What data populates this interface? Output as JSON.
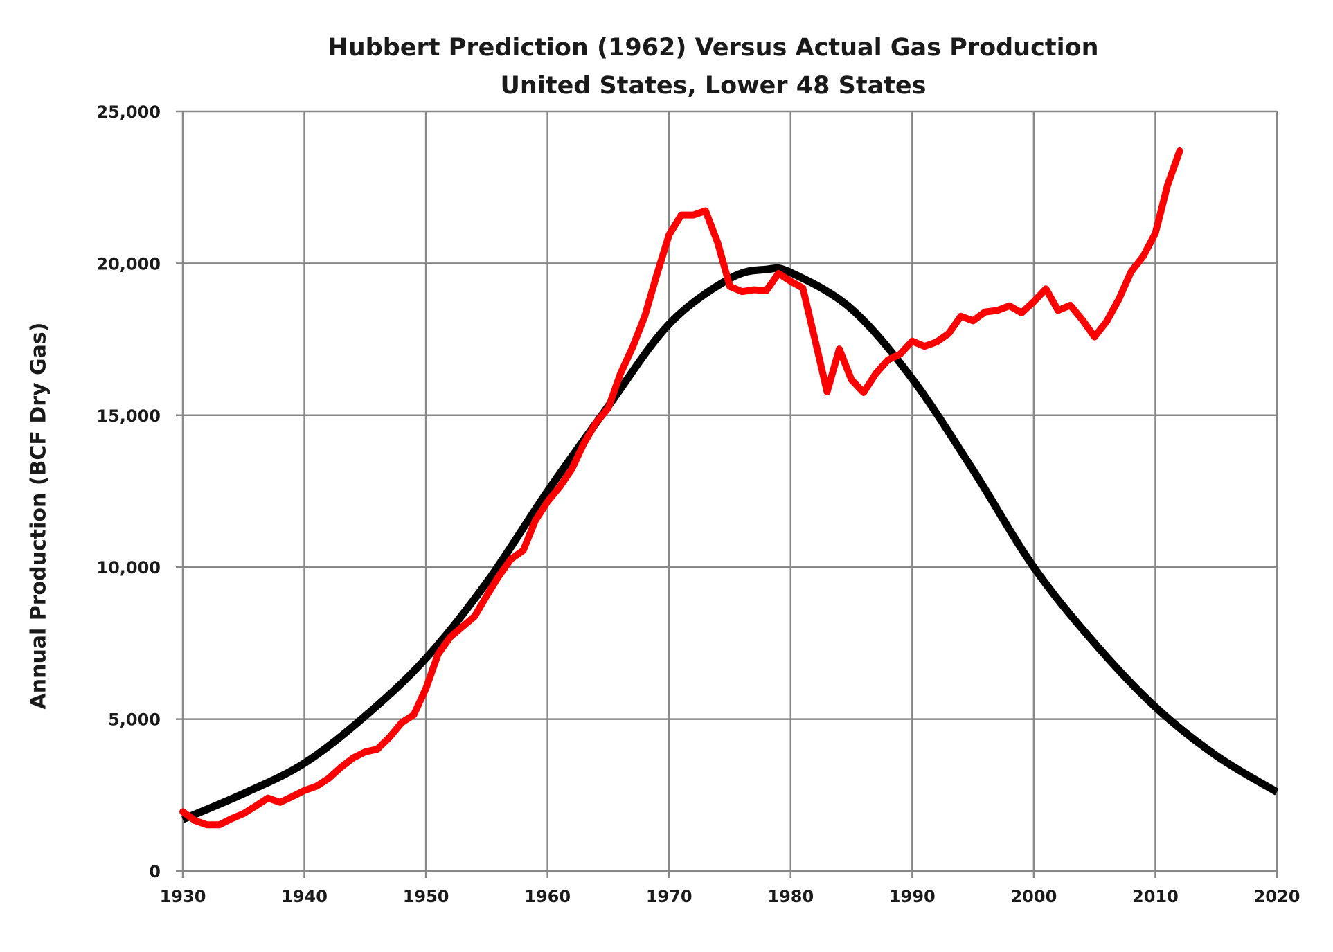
{
  "chart_data": {
    "type": "line",
    "title": "Hubbert Prediction (1962) Versus Actual Gas Production",
    "subtitle": "United States, Lower 48 States",
    "xlabel": "",
    "ylabel": "Annual Production (BCF Dry Gas)",
    "xlim": [
      1930,
      2020
    ],
    "ylim": [
      0,
      25000
    ],
    "x_ticks": [
      "1930",
      "1940",
      "1950",
      "1960",
      "1970",
      "1980",
      "1990",
      "2000",
      "2010",
      "2020"
    ],
    "y_ticks": [
      "0",
      "5,000",
      "10,000",
      "15,000",
      "20,000",
      "25,000"
    ],
    "grid": true,
    "legend": "none",
    "series": [
      {
        "color": "#000000",
        "x": [
          1930,
          1935,
          1940,
          1945,
          1950,
          1955,
          1960,
          1965,
          1970,
          1975,
          1978,
          1980,
          1985,
          1990,
          1995,
          2000,
          2005,
          2010,
          2015,
          2020
        ],
        "values": [
          1700,
          2550,
          3550,
          5100,
          7000,
          9500,
          12500,
          15300,
          18000,
          19500,
          19800,
          19700,
          18500,
          16200,
          13200,
          10000,
          7500,
          5400,
          3800,
          2600
        ]
      },
      {
        "color": "#ff0000",
        "x": [
          1930,
          1931,
          1932,
          1933,
          1934,
          1935,
          1936,
          1937,
          1938,
          1939,
          1940,
          1941,
          1942,
          1943,
          1944,
          1945,
          1946,
          1947,
          1948,
          1949,
          1950,
          1951,
          1952,
          1953,
          1954,
          1955,
          1956,
          1957,
          1958,
          1959,
          1960,
          1961,
          1962,
          1963,
          1964,
          1965,
          1966,
          1967,
          1968,
          1969,
          1970,
          1971,
          1972,
          1973,
          1974,
          1975,
          1976,
          1977,
          1978,
          1979,
          1980,
          1981,
          1982,
          1983,
          1984,
          1985,
          1986,
          1987,
          1988,
          1989,
          1990,
          1991,
          1992,
          1993,
          1994,
          1995,
          1996,
          1997,
          1998,
          1999,
          2000,
          2001,
          2002,
          2003,
          2004,
          2005,
          2006,
          2007,
          2008,
          2009,
          2010,
          2011,
          2012
        ],
        "values": [
          1950,
          1660,
          1520,
          1520,
          1720,
          1890,
          2140,
          2400,
          2260,
          2450,
          2650,
          2790,
          3050,
          3410,
          3720,
          3920,
          4010,
          4400,
          4880,
          5140,
          6010,
          7140,
          7700,
          8040,
          8380,
          9060,
          9710,
          10270,
          10550,
          11540,
          12160,
          12640,
          13230,
          14080,
          14760,
          15240,
          16370,
          17240,
          18260,
          19640,
          20940,
          21590,
          21590,
          21730,
          20680,
          19240,
          19070,
          19130,
          19100,
          19670,
          19410,
          19190,
          17490,
          15770,
          17180,
          16170,
          15750,
          16370,
          16820,
          17010,
          17440,
          17270,
          17410,
          17690,
          18260,
          18110,
          18400,
          18450,
          18600,
          18370,
          18740,
          19160,
          18450,
          18620,
          18140,
          17580,
          18090,
          18820,
          19720,
          20230,
          20990,
          22570,
          23700
        ]
      }
    ]
  }
}
